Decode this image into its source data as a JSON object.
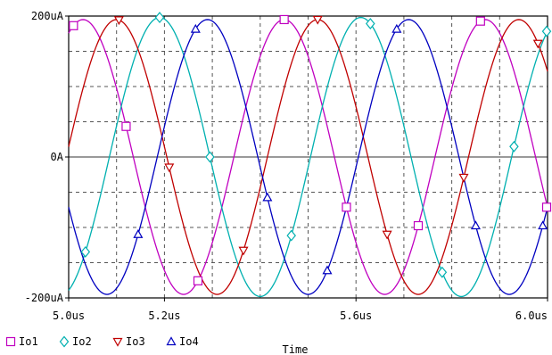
{
  "chart_data": {
    "type": "line",
    "title": "",
    "xlabel": "Time",
    "ylabel": "",
    "xlim": [
      5.0,
      6.0
    ],
    "ylim": [
      -200,
      200
    ],
    "x_unit": "us",
    "y_unit": "uA",
    "x_ticks": [
      {
        "value": 5.0,
        "label": "5.0us"
      },
      {
        "value": 5.2,
        "label": "5.2us"
      },
      {
        "value": 5.6,
        "label": "5.6us"
      },
      {
        "value": 6.0,
        "label": "6.0us"
      }
    ],
    "y_ticks": [
      {
        "value": 200,
        "label": "200uA"
      },
      {
        "value": 0,
        "label": "0A"
      },
      {
        "value": -200,
        "label": "-200uA"
      }
    ],
    "x_grid": [
      5.1,
      5.2,
      5.3,
      5.4,
      5.5,
      5.6,
      5.7,
      5.8,
      5.9
    ],
    "y_grid": [
      150,
      100,
      50,
      0,
      -50,
      -100,
      -150
    ],
    "grid": true,
    "legend_position": "bottom-left",
    "series": [
      {
        "name": "Io1",
        "marker": "square",
        "color": "#c000c0",
        "amplitude": 195,
        "period": 0.42,
        "peak_time": 5.45,
        "marker_x": [
          5.01,
          5.12,
          5.27,
          5.45,
          5.58,
          5.73,
          5.86,
          6.02
        ]
      },
      {
        "name": "Io2",
        "marker": "diamond",
        "color": "#00b0b0",
        "amplitude": 198,
        "period": 0.42,
        "peak_time": 5.19,
        "marker_x": [
          5.035,
          5.19,
          5.295,
          5.465,
          5.63,
          5.78,
          5.93,
          6.04
        ]
      },
      {
        "name": "Io3",
        "marker": "triangle-down",
        "color": "#c00000",
        "amplitude": 195,
        "period": 0.42,
        "peak_time": 5.1,
        "marker_x": [
          5.105,
          5.21,
          5.365,
          5.52,
          5.665,
          5.825,
          5.98
        ]
      },
      {
        "name": "Io4",
        "marker": "triangle-up",
        "color": "#0000c0",
        "amplitude": 195,
        "period": 0.42,
        "peak_time": 5.29,
        "marker_x": [
          5.145,
          5.265,
          5.415,
          5.54,
          5.685,
          5.85,
          5.99
        ]
      }
    ]
  }
}
